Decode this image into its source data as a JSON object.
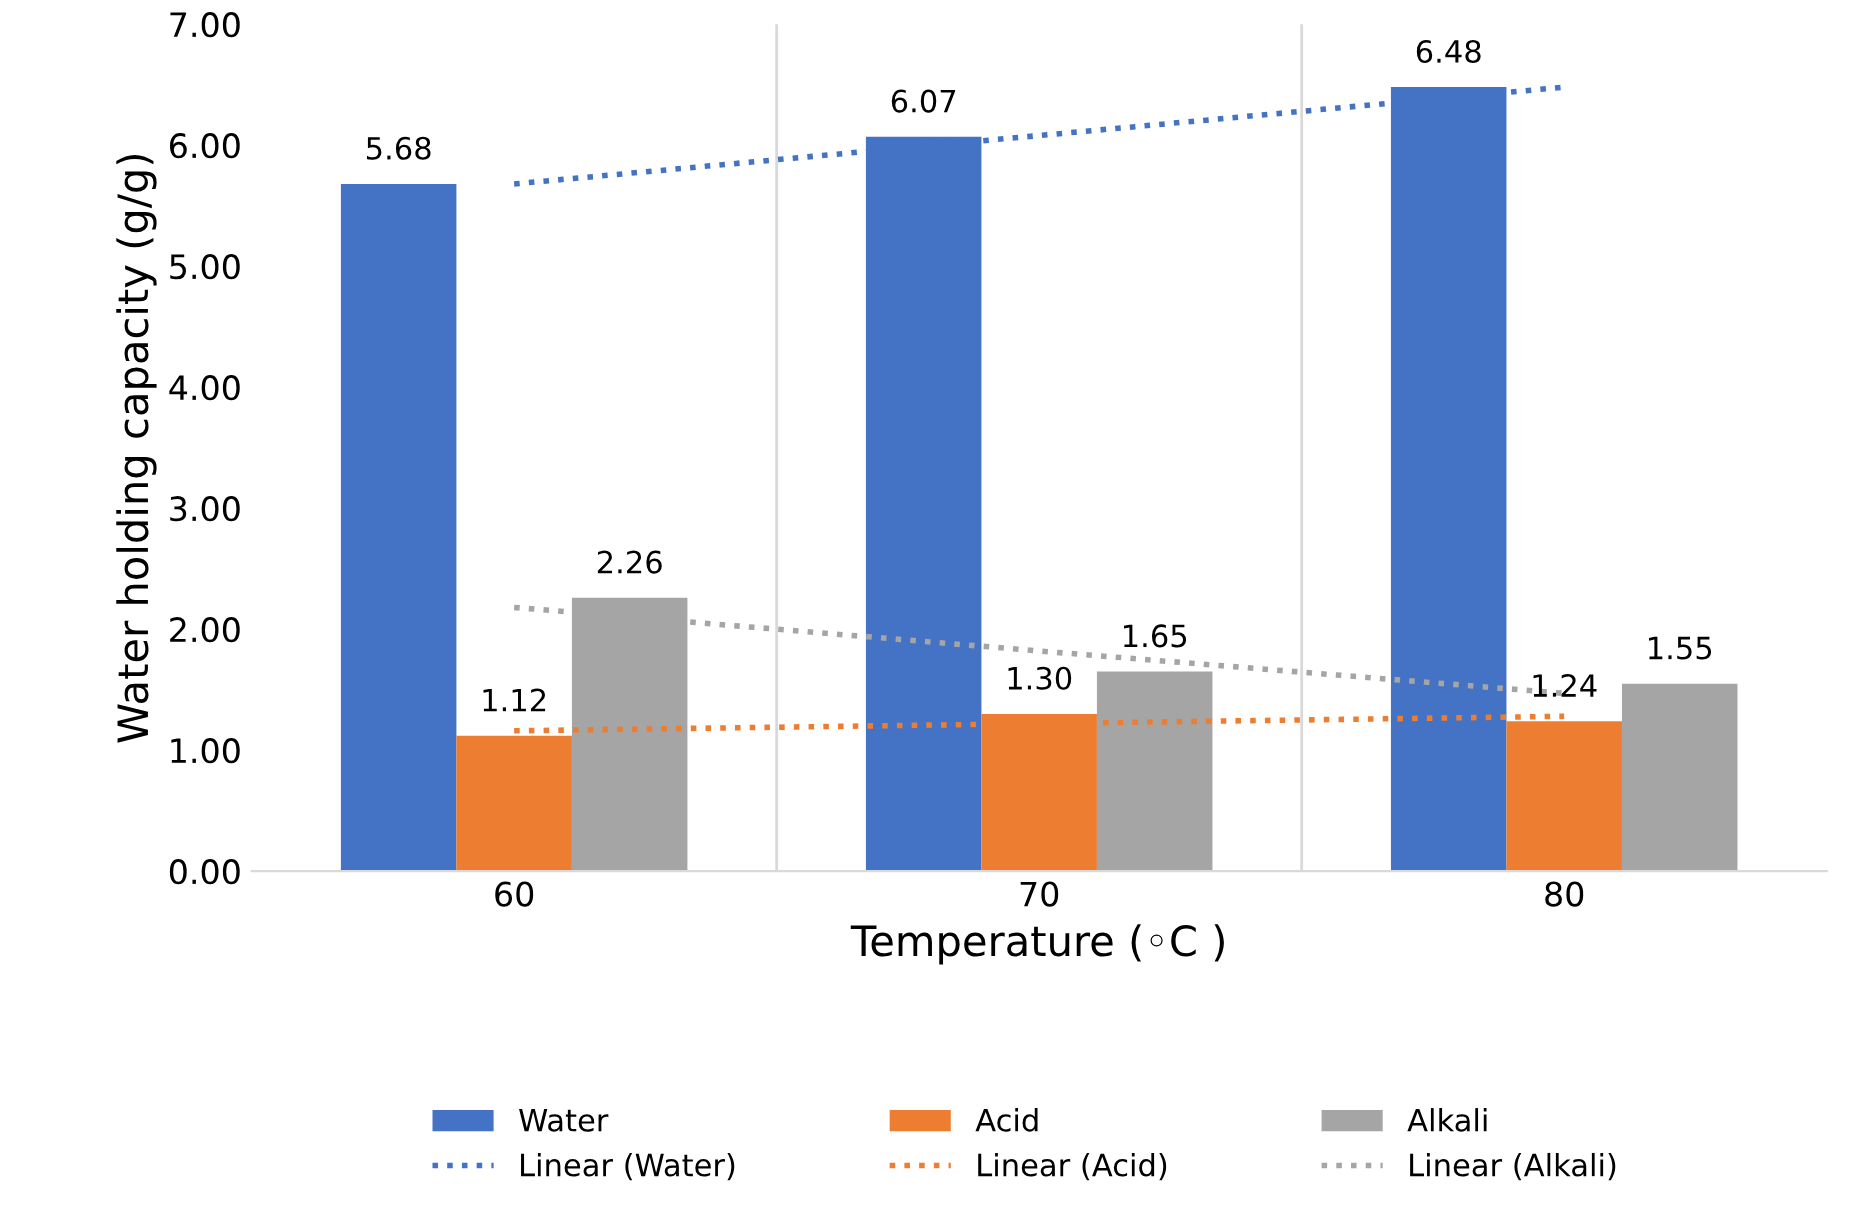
{
  "chart_data": {
    "type": "bar",
    "xlabel": "Temperature (◦C )",
    "ylabel": "Water holding capacity (g/g)",
    "categories": [
      "60",
      "70",
      "80"
    ],
    "series": [
      {
        "name": "Water",
        "color": "#4472c4",
        "values": [
          5.68,
          6.07,
          6.48
        ],
        "value_labels": [
          "5.68",
          "6.07",
          "6.48"
        ]
      },
      {
        "name": "Acid",
        "color": "#ed7d31",
        "values": [
          1.12,
          1.3,
          1.24
        ],
        "value_labels": [
          "1.12",
          "1.30",
          "1.24"
        ]
      },
      {
        "name": "Alkali",
        "color": "#a5a5a5",
        "values": [
          2.26,
          1.65,
          1.55
        ],
        "value_labels": [
          "2.26",
          "1.65",
          "1.55"
        ]
      },
      {
        "name": "Linear (Water)",
        "type": "line",
        "line_style": "dotted",
        "color": "#4472c4",
        "x": [
          "60",
          "70",
          "80"
        ],
        "values": [
          5.68,
          6.08,
          6.48
        ]
      },
      {
        "name": "Linear (Acid)",
        "type": "line",
        "line_style": "dotted",
        "color": "#ed7d31",
        "x": [
          "60",
          "70",
          "80"
        ],
        "values": [
          1.16,
          1.22,
          1.28
        ]
      },
      {
        "name": "Linear (Alkali)",
        "type": "line",
        "line_style": "dotted",
        "color": "#a5a5a5",
        "x": [
          "60",
          "70",
          "80"
        ],
        "values": [
          2.18,
          1.82,
          1.47
        ]
      }
    ],
    "ylim": [
      0,
      7
    ],
    "yticks": [
      {
        "value": 0,
        "label": "0.00"
      },
      {
        "value": 1,
        "label": "1.00"
      },
      {
        "value": 2,
        "label": "2.00"
      },
      {
        "value": 3,
        "label": "3.00"
      },
      {
        "value": 4,
        "label": "4.00"
      },
      {
        "value": 5,
        "label": "5.00"
      },
      {
        "value": 6,
        "label": "6.00"
      },
      {
        "value": 7,
        "label": "7.00"
      }
    ],
    "grid": "x",
    "legend": "bottom"
  }
}
